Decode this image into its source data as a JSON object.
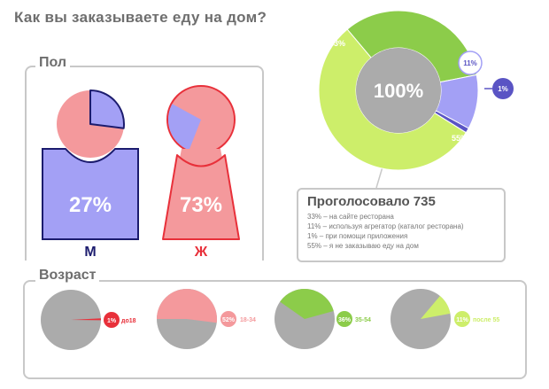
{
  "title": "Как вы заказываете еду на дом?",
  "colors": {
    "red": "#e8303a",
    "pink": "#f4999c",
    "blue": "#a3a0f5",
    "blue_dark": "#5a54c4",
    "green_dark": "#8ccc4a",
    "green_light": "#cdee6a",
    "gray": "#ababab",
    "navy": "#1c1c6e",
    "line": "#c8c8c8"
  },
  "gender": {
    "label": "Пол",
    "male": {
      "percent": "27%",
      "letter": "М",
      "value": 27
    },
    "female": {
      "percent": "73%",
      "letter": "Ж",
      "value": 73
    }
  },
  "poll": {
    "center_label": "100%",
    "votes_title": "Проголосовало 735",
    "lines": [
      "33% – на сайте ресторана",
      "11% – используя агрегатор (каталог ресторана)",
      "1% – при помощи приложения",
      "55% – я не заказываю еду на дом"
    ]
  },
  "age": {
    "label": "Возраст",
    "items": [
      {
        "percent": "1%",
        "range": "до18",
        "value": 1
      },
      {
        "percent": "52%",
        "range": "18-34",
        "value": 52
      },
      {
        "percent": "36%",
        "range": "35-54",
        "value": 36
      },
      {
        "percent": "11%",
        "range": "после 55",
        "value": 11
      }
    ]
  },
  "chart_data": [
    {
      "type": "pie",
      "title": "Как вы заказываете еду на дом?",
      "center_label": "100%",
      "total_votes": 735,
      "categories": [
        "на сайте ресторана",
        "используя агрегатор (каталог ресторана)",
        "при помощи приложения",
        "я не заказываю еду на дом"
      ],
      "values": [
        33,
        11,
        1,
        55
      ],
      "labels": [
        "33%",
        "11%",
        "1%",
        "55%"
      ]
    },
    {
      "type": "bar",
      "title": "Пол",
      "categories": [
        "М",
        "Ж"
      ],
      "values": [
        27,
        73
      ],
      "labels": [
        "27%",
        "73%"
      ]
    },
    {
      "type": "pie",
      "title": "Возраст",
      "categories": [
        "до18",
        "18-34",
        "35-54",
        "после 55"
      ],
      "values": [
        1,
        52,
        36,
        11
      ],
      "labels": [
        "1%",
        "52%",
        "36%",
        "11%"
      ]
    }
  ]
}
